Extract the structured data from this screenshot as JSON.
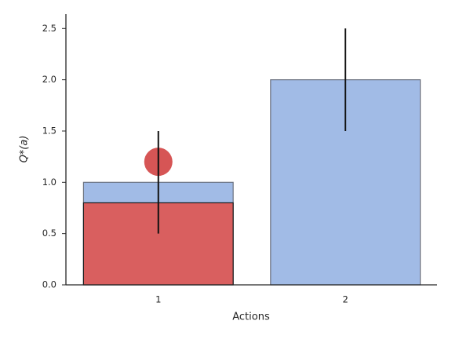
{
  "chart_data": {
    "type": "bar",
    "xlabel": "Actions",
    "ylabel": "Q*(a)",
    "categories": [
      "1",
      "2"
    ],
    "series": [
      {
        "kind": "bar",
        "color": "#a1bbe6",
        "edgecolor": "#6b7280",
        "values": [
          1.0,
          2.0
        ],
        "errors": [
          0.5,
          0.5
        ]
      },
      {
        "kind": "bar",
        "color": "#d95f5f",
        "edgecolor": "#1a1a1a",
        "values": [
          0.8,
          null
        ]
      },
      {
        "kind": "dot",
        "color": "#d65555",
        "values": [
          1.2,
          null
        ]
      }
    ],
    "xlim": [
      0.506,
      2.49
    ],
    "ylim": [
      0,
      2.64
    ],
    "yticks": [
      {
        "value": 0,
        "label": "0.0"
      },
      0.5,
      {
        "value": 1,
        "label": "1.0"
      },
      1.5,
      {
        "value": 2,
        "label": "2.0"
      },
      2.5
    ],
    "grid": false
  }
}
